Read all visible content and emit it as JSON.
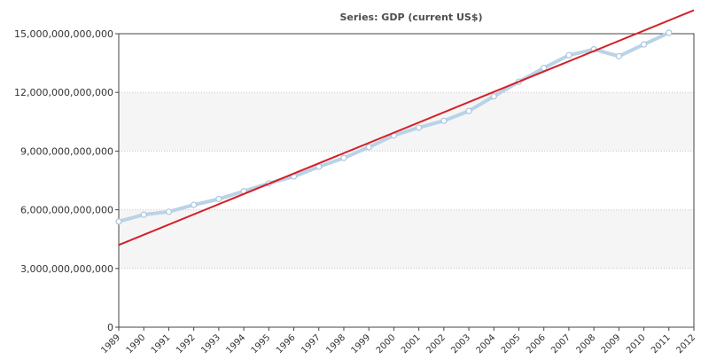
{
  "chart_data": {
    "type": "line",
    "title": "Series: GDP (current US$)",
    "xlabel": "",
    "ylabel": "",
    "x_ticks": [
      "1989",
      "1990",
      "1991",
      "1992",
      "1993",
      "1994",
      "1995",
      "1996",
      "1997",
      "1998",
      "1999",
      "2000",
      "2001",
      "2002",
      "2003",
      "2004",
      "2005",
      "2006",
      "2007",
      "2008",
      "2009",
      "2010",
      "2011",
      "2012"
    ],
    "y_ticks": [
      "0",
      "3,000,000,000,000",
      "6,000,000,000,000",
      "9,000,000,000,000",
      "12,000,000,000,000",
      "15,000,000,000,000"
    ],
    "ylim": [
      0,
      15000000000000
    ],
    "grid": true,
    "background_bands": true,
    "series": [
      {
        "points": [
          {
            "x": 1989,
            "y": 5400000000000
          },
          {
            "x": 1990,
            "y": 5750000000000
          },
          {
            "x": 1991,
            "y": 5900000000000
          },
          {
            "x": 1992,
            "y": 6250000000000
          },
          {
            "x": 1993,
            "y": 6550000000000
          },
          {
            "x": 1994,
            "y": 6950000000000
          },
          {
            "x": 1995,
            "y": 7350000000000
          },
          {
            "x": 1996,
            "y": 7700000000000
          },
          {
            "x": 1997,
            "y": 8200000000000
          },
          {
            "x": 1998,
            "y": 8650000000000
          },
          {
            "x": 1999,
            "y": 9200000000000
          },
          {
            "x": 2000,
            "y": 9800000000000
          },
          {
            "x": 2001,
            "y": 10200000000000
          },
          {
            "x": 2002,
            "y": 10550000000000
          },
          {
            "x": 2003,
            "y": 11050000000000
          },
          {
            "x": 2004,
            "y": 11800000000000
          },
          {
            "x": 2005,
            "y": 12550000000000
          },
          {
            "x": 2006,
            "y": 13250000000000
          },
          {
            "x": 2007,
            "y": 13900000000000
          },
          {
            "x": 2008,
            "y": 14200000000000
          },
          {
            "x": 2009,
            "y": 13850000000000
          },
          {
            "x": 2010,
            "y": 14450000000000
          },
          {
            "x": 2011,
            "y": 15050000000000
          }
        ],
        "color": "#b9d3e8"
      }
    ],
    "trendline": {
      "from": {
        "x": 1989,
        "y": 4200000000000
      },
      "to": {
        "x": 2012,
        "y": 16200000000000
      },
      "color": "#d42027"
    }
  }
}
